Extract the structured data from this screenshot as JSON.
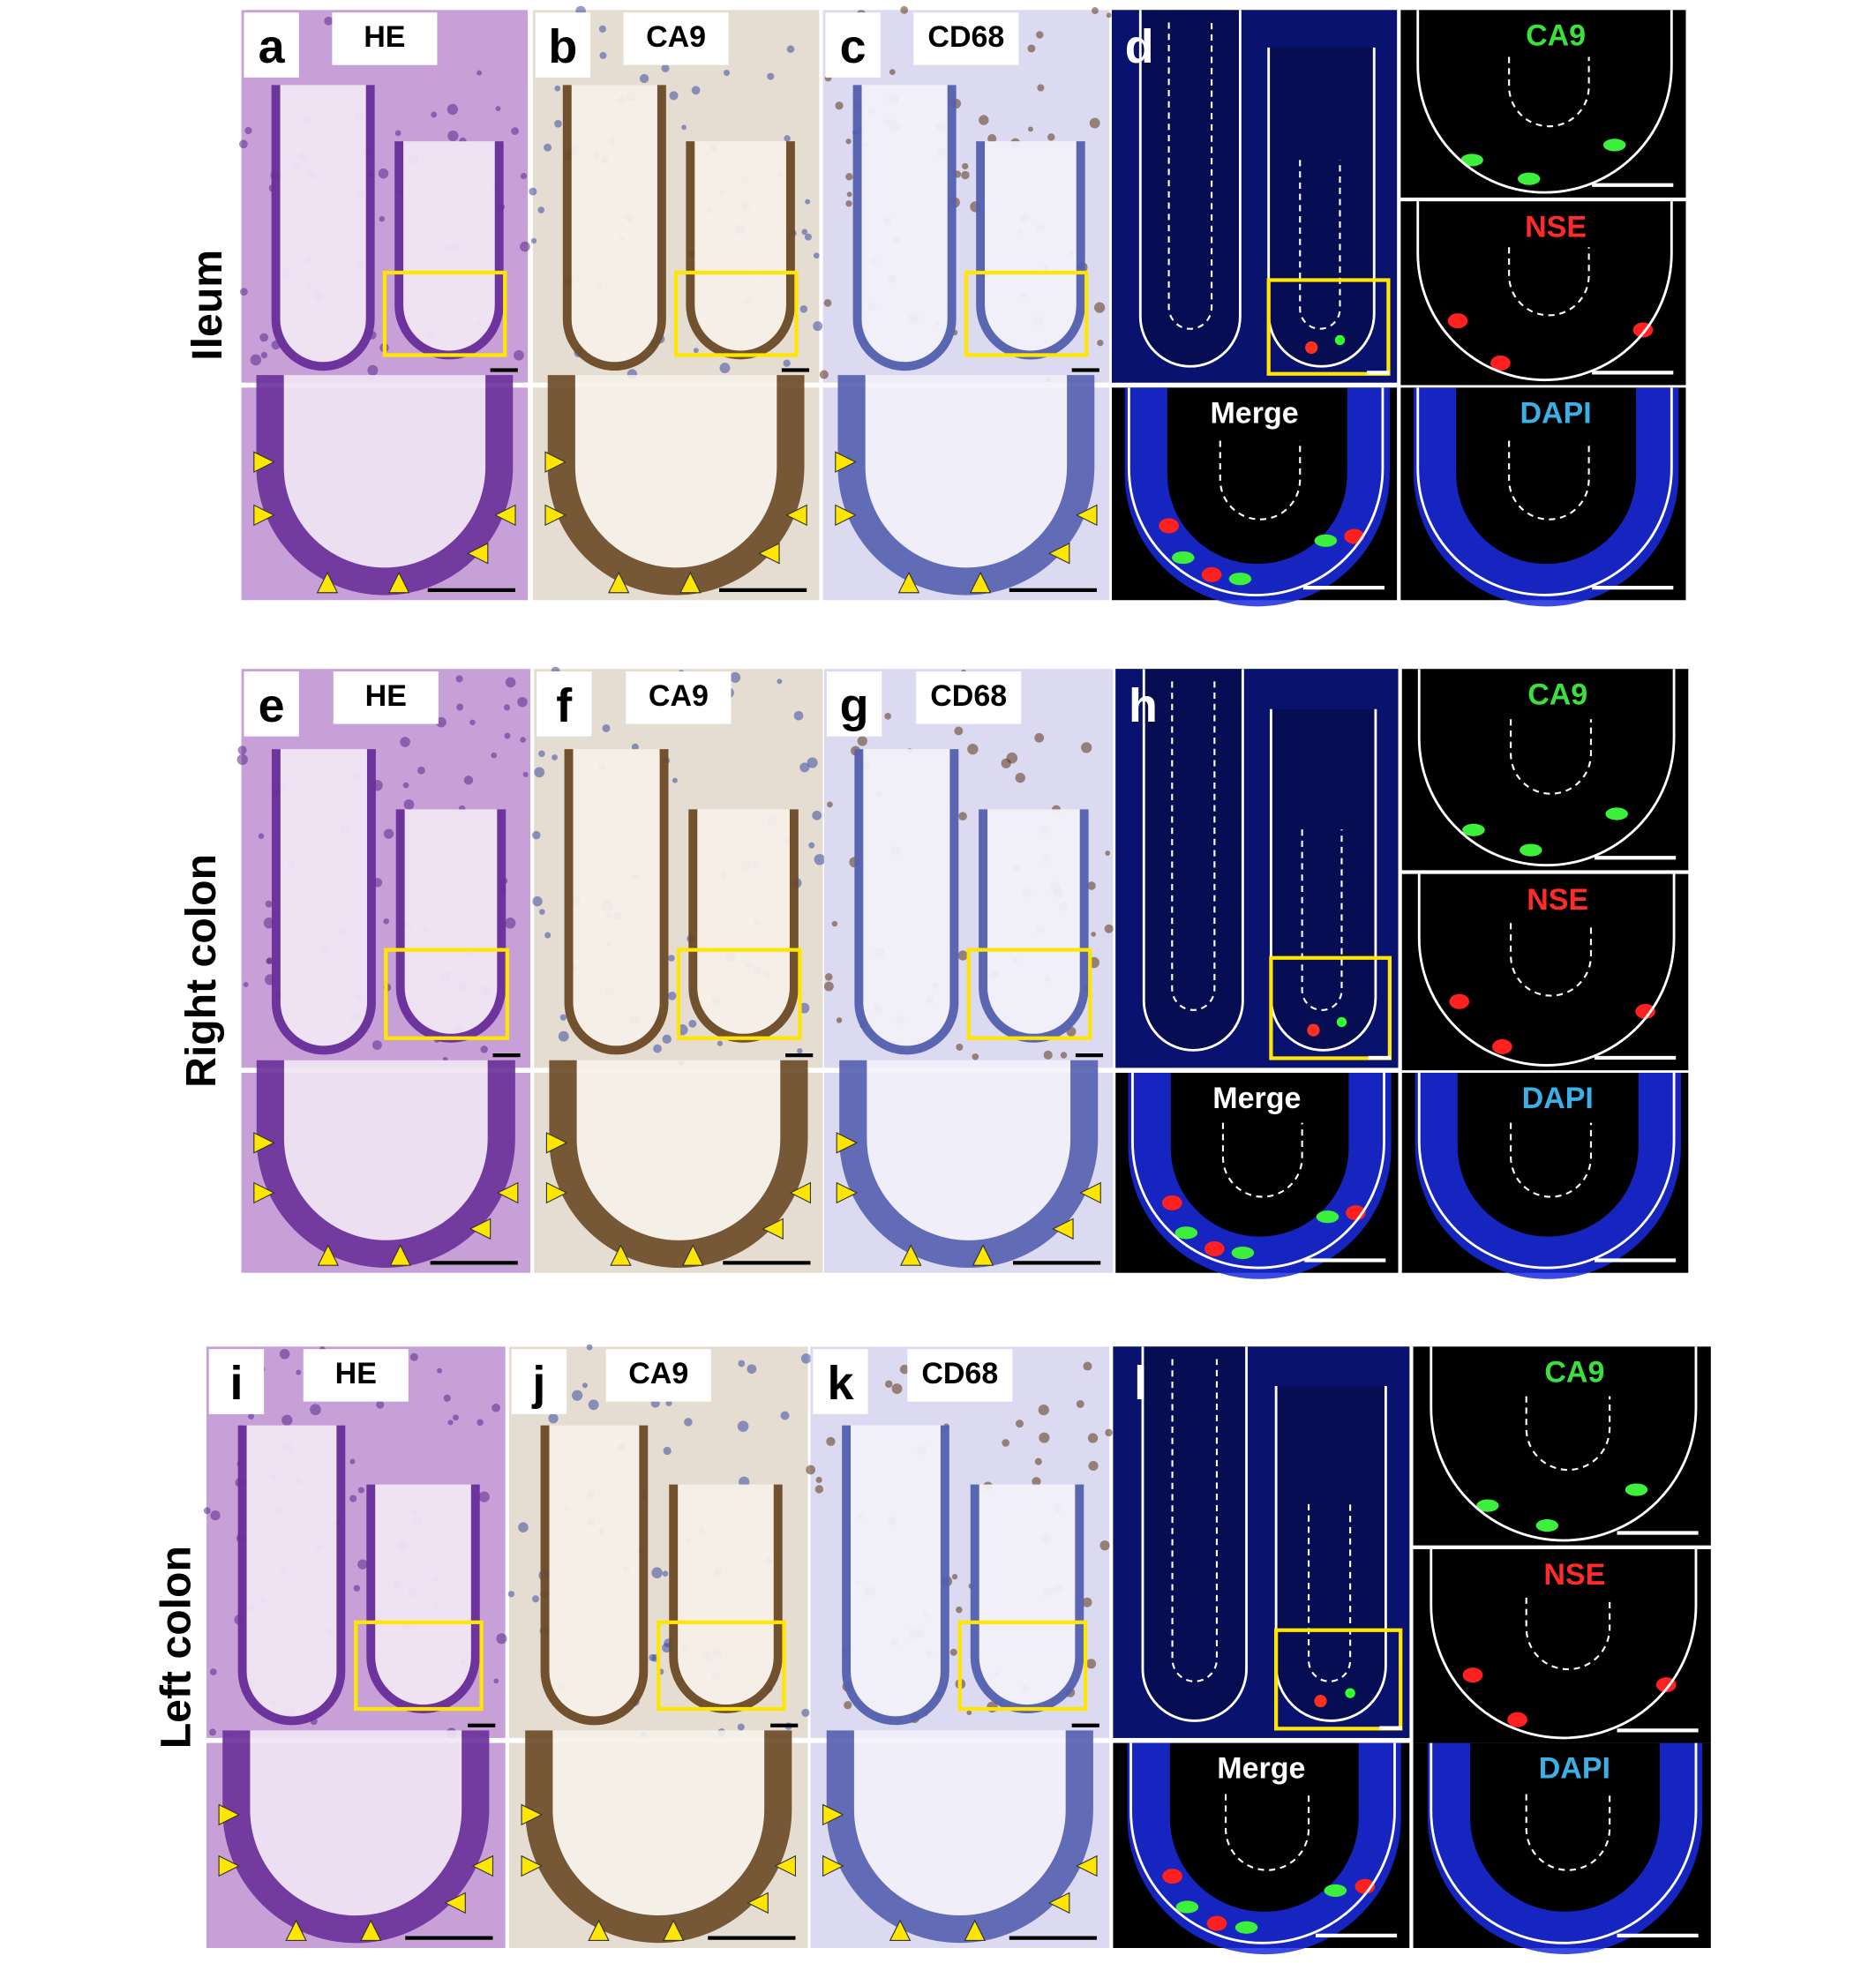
{
  "rows": [
    {
      "label": "Ileum",
      "panels": [
        {
          "letter": "a",
          "stain": "HE"
        },
        {
          "letter": "b",
          "stain": "CA9"
        },
        {
          "letter": "c",
          "stain": "CD68"
        }
      ],
      "fluorescence": {
        "letter": "d",
        "channels": [
          "CA9",
          "NSE",
          "Merge",
          "DAPI"
        ]
      }
    },
    {
      "label": "Right colon",
      "panels": [
        {
          "letter": "e",
          "stain": "HE"
        },
        {
          "letter": "f",
          "stain": "CA9"
        },
        {
          "letter": "g",
          "stain": "CD68"
        }
      ],
      "fluorescence": {
        "letter": "h",
        "channels": [
          "CA9",
          "NSE",
          "Merge",
          "DAPI"
        ]
      }
    },
    {
      "label": "Left colon",
      "panels": [
        {
          "letter": "i",
          "stain": "HE"
        },
        {
          "letter": "j",
          "stain": "CA9"
        },
        {
          "letter": "k",
          "stain": "CD68"
        }
      ],
      "fluorescence": {
        "letter": "l",
        "channels": [
          "CA9",
          "NSE",
          "Merge",
          "DAPI"
        ]
      }
    }
  ]
}
